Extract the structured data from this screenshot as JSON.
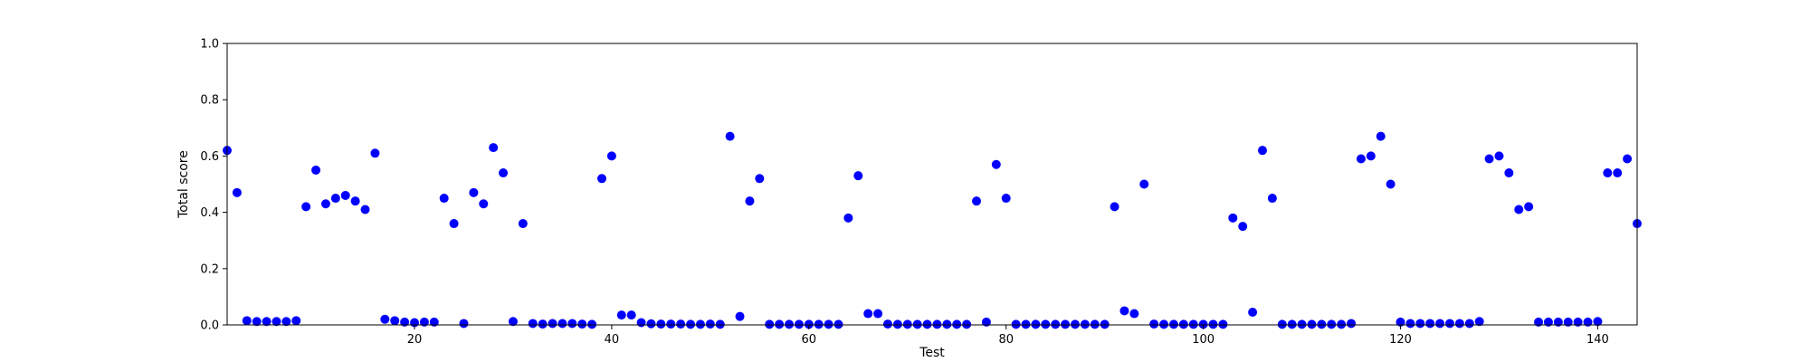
{
  "chart_data": {
    "type": "scatter",
    "title": "",
    "xlabel": "Test",
    "ylabel": "Total score",
    "xlim": [
      1,
      144
    ],
    "ylim": [
      0,
      1.0
    ],
    "x_ticks": [
      20,
      40,
      60,
      80,
      100,
      120,
      140
    ],
    "y_ticks": [
      0.0,
      0.2,
      0.4,
      0.6,
      0.8,
      1.0
    ],
    "x_tick_labels": [
      "20",
      "40",
      "60",
      "80",
      "100",
      "120",
      "140"
    ],
    "y_tick_labels": [
      "0.0",
      "0.2",
      "0.4",
      "0.6",
      "0.8",
      "1.0"
    ],
    "grid": false,
    "marker_color": "#0000ff",
    "series": [
      {
        "x": [
          1,
          2,
          3,
          4,
          5,
          6,
          7,
          8,
          9,
          10,
          11,
          12,
          13,
          14,
          15,
          16,
          17,
          18,
          19,
          20,
          21,
          22,
          23,
          24,
          25,
          26,
          27,
          28,
          29,
          30,
          31,
          32,
          33,
          34,
          35,
          36,
          37,
          38,
          39,
          40,
          41,
          42,
          43,
          44,
          45,
          46,
          47,
          48,
          49,
          50,
          51,
          52,
          53,
          54,
          55,
          56,
          57,
          58,
          59,
          60,
          61,
          62,
          63,
          64,
          65,
          66,
          67,
          68,
          69,
          70,
          71,
          72,
          73,
          74,
          75,
          76,
          77,
          78,
          79,
          80,
          81,
          82,
          83,
          84,
          85,
          86,
          87,
          88,
          89,
          90,
          91,
          92,
          93,
          94,
          95,
          96,
          97,
          98,
          99,
          100,
          101,
          102,
          103,
          104,
          105,
          106,
          107,
          108,
          109,
          110,
          111,
          112,
          113,
          114,
          115,
          116,
          117,
          118,
          119,
          120,
          121,
          122,
          123,
          124,
          125,
          126,
          127,
          128,
          129,
          130,
          131,
          132,
          133,
          134,
          135,
          136,
          137,
          138,
          139,
          140,
          141,
          142,
          143,
          144
        ],
        "y": [
          0.62,
          0.47,
          0.015,
          0.012,
          0.012,
          0.012,
          0.012,
          0.015,
          0.42,
          0.55,
          0.43,
          0.45,
          0.46,
          0.44,
          0.41,
          0.61,
          0.02,
          0.015,
          0.01,
          0.008,
          0.01,
          0.01,
          0.45,
          0.36,
          0.005,
          0.47,
          0.43,
          0.63,
          0.54,
          0.012,
          0.36,
          0.005,
          0.003,
          0.005,
          0.005,
          0.005,
          0.003,
          0.002,
          0.52,
          0.6,
          0.035,
          0.035,
          0.008,
          0.004,
          0.003,
          0.003,
          0.003,
          0.002,
          0.002,
          0.003,
          0.002,
          0.67,
          0.03,
          0.44,
          0.52,
          0.002,
          0.002,
          0.002,
          0.002,
          0.002,
          0.002,
          0.002,
          0.002,
          0.38,
          0.53,
          0.04,
          0.04,
          0.003,
          0.002,
          0.002,
          0.002,
          0.002,
          0.002,
          0.002,
          0.002,
          0.002,
          0.44,
          0.01,
          0.57,
          0.45,
          0.002,
          0.002,
          0.002,
          0.002,
          0.002,
          0.002,
          0.002,
          0.002,
          0.002,
          0.002,
          0.42,
          0.05,
          0.04,
          0.5,
          0.003,
          0.002,
          0.002,
          0.002,
          0.002,
          0.002,
          0.002,
          0.002,
          0.38,
          0.35,
          0.045,
          0.62,
          0.45,
          0.002,
          0.002,
          0.002,
          0.002,
          0.002,
          0.002,
          0.002,
          0.005,
          0.59,
          0.6,
          0.67,
          0.5,
          0.01,
          0.005,
          0.005,
          0.005,
          0.005,
          0.005,
          0.005,
          0.005,
          0.012,
          0.59,
          0.6,
          0.54,
          0.41,
          0.42,
          0.01,
          0.01,
          0.01,
          0.01,
          0.01,
          0.01,
          0.012,
          0.54,
          0.54,
          0.59,
          0.36
        ]
      }
    ]
  }
}
